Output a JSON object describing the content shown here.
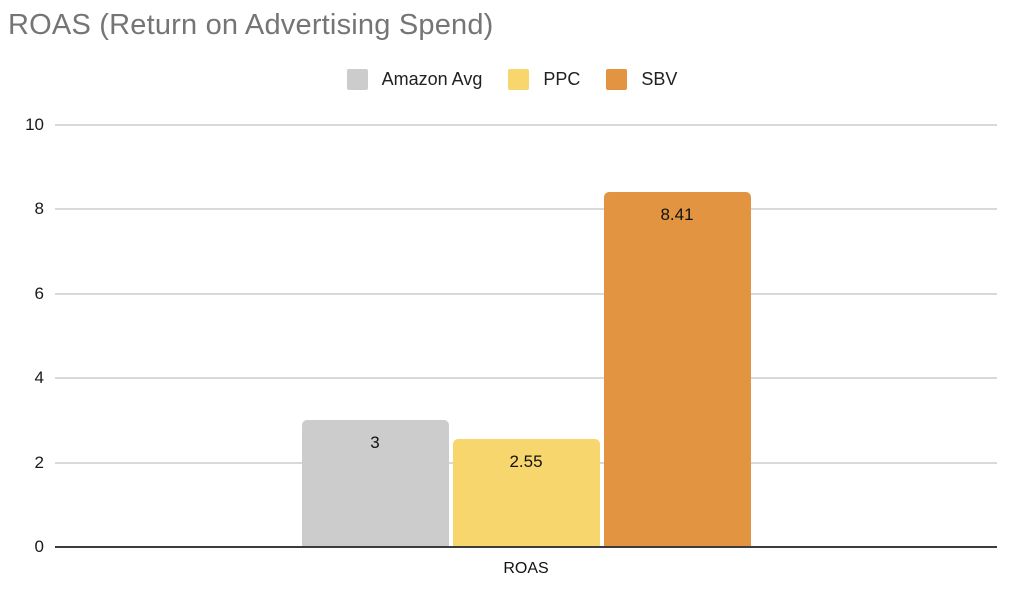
{
  "chart_data": {
    "type": "bar",
    "title": "ROAS (Return on Advertising Spend)",
    "categories": [
      "ROAS"
    ],
    "xlabel": "ROAS",
    "ylabel": "",
    "ylim": [
      0,
      10
    ],
    "yticks": [
      0,
      2,
      4,
      6,
      8,
      10
    ],
    "grid": true,
    "legend_position": "top",
    "series": [
      {
        "name": "Amazon Avg",
        "values": [
          3
        ],
        "data_labels": [
          "3"
        ],
        "color": "#cccccc"
      },
      {
        "name": "PPC",
        "values": [
          2.55
        ],
        "data_labels": [
          "2.55"
        ],
        "color": "#f8d66e"
      },
      {
        "name": "SBV",
        "values": [
          8.41
        ],
        "data_labels": [
          "8.41"
        ],
        "color": "#e39440"
      }
    ],
    "style": {
      "background": "#ffffff",
      "title_color": "#757575",
      "tick_label_color": "#1a1a1a",
      "data_label_color": "#111111",
      "grid_color": "#d9d9d9",
      "axis_color": "#3c3c3c"
    }
  }
}
